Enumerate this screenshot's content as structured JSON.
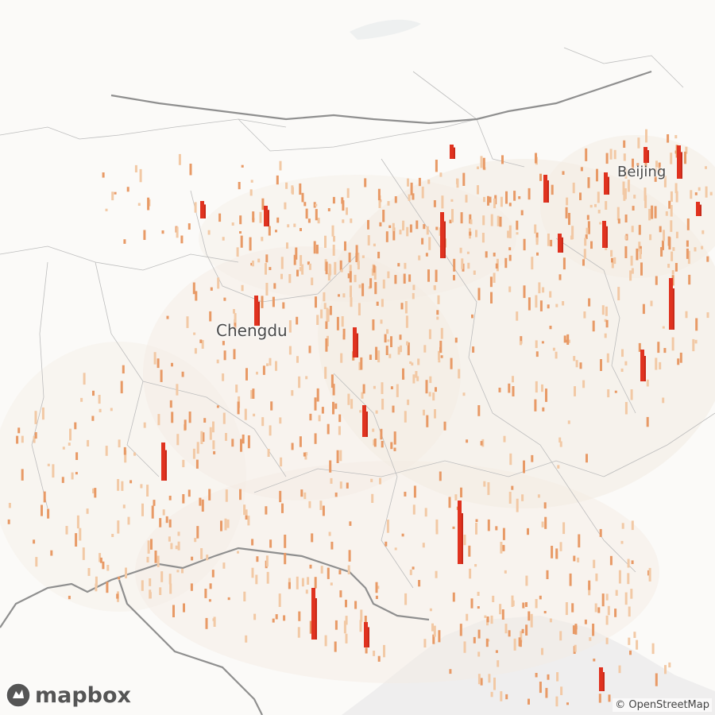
{
  "map": {
    "labels": {
      "chengdu": "Chengdu",
      "beijing": "Beijing"
    },
    "logo_text": "mapbox",
    "attribution": "© OpenStreetMap",
    "colors": {
      "land": "#fbfaf8",
      "sea": "#efeeee",
      "density_low": "#f3ebe2",
      "bar_low": "#f2c9a5",
      "bar_mid": "#e89a66",
      "bar_high": "#e0321f"
    }
  }
}
